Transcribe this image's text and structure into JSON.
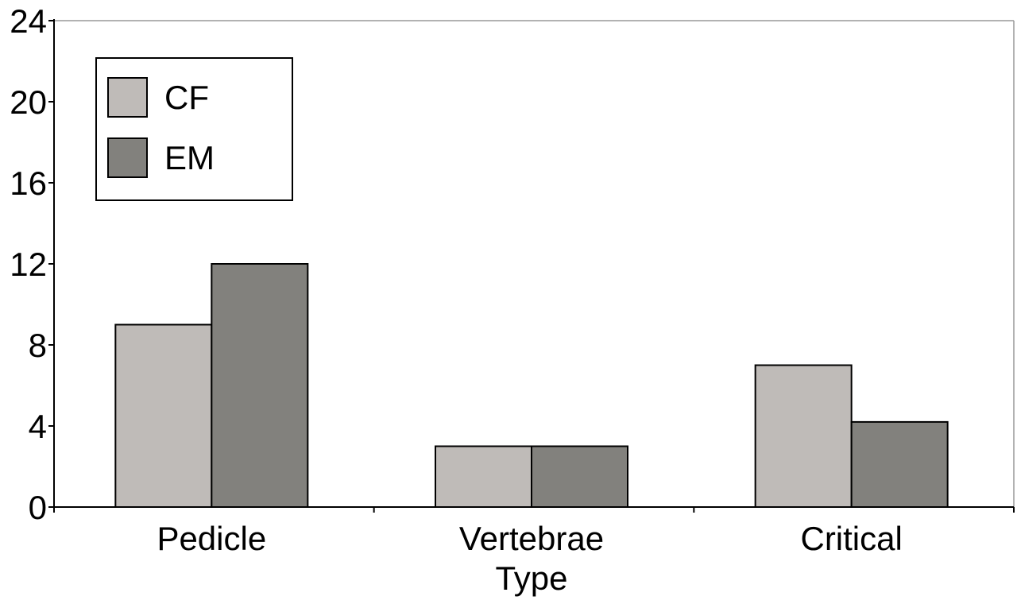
{
  "chart_data": {
    "type": "bar",
    "categories": [
      "Pedicle",
      "Vertebrae\nType",
      "Critical"
    ],
    "series": [
      {
        "name": "CF",
        "values": [
          9,
          3,
          7
        ]
      },
      {
        "name": "EM",
        "values": [
          12,
          3,
          4.2
        ]
      }
    ],
    "title": "",
    "xlabel": "",
    "ylabel": "",
    "ylim": [
      0,
      24
    ],
    "yticks": [
      0,
      4,
      8,
      12,
      16,
      20,
      24
    ],
    "grid": false,
    "legend_position": "top-left",
    "colors": {
      "CF": "#bfbbb8",
      "EM": "#82817d",
      "axis": "#000000",
      "frame": "#999999"
    }
  }
}
